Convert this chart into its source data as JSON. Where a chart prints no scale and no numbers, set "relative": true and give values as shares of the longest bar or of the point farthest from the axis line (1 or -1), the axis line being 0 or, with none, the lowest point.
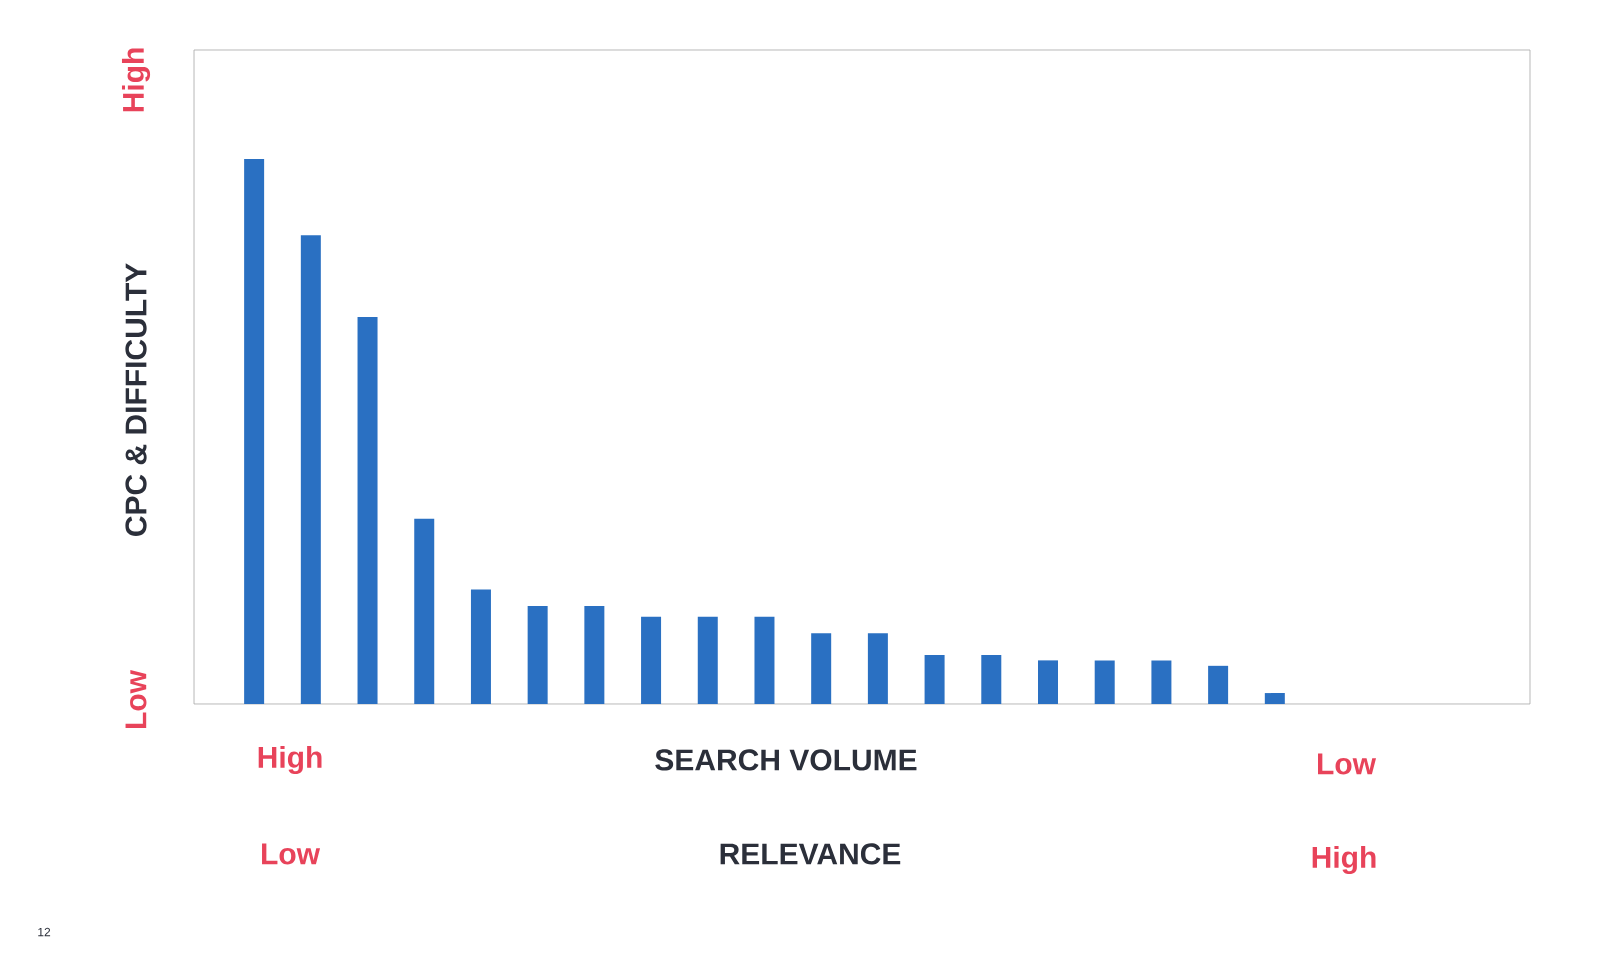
{
  "chart_data": {
    "type": "bar",
    "relative": true,
    "ylabel": "CPC & DIFFICULTY",
    "xlabel": "SEARCH VOLUME",
    "categories": [
      null,
      null,
      null,
      null,
      null,
      null,
      null,
      null,
      null,
      null,
      null,
      null,
      null,
      null,
      null,
      null,
      null,
      null,
      null
    ],
    "values": [
      1,
      0.86,
      0.71,
      0.34,
      0.21,
      0.18,
      0.18,
      0.16,
      0.16,
      0.16,
      0.13,
      0.13,
      0.09,
      0.09,
      0.08,
      0.08,
      0.08,
      0.07,
      0.02
    ],
    "color": "#2a70c2",
    "annotations": [
      "High",
      "Low",
      "High",
      "Low",
      "Low",
      "High",
      "RELEVANCE",
      "12"
    ]
  }
}
